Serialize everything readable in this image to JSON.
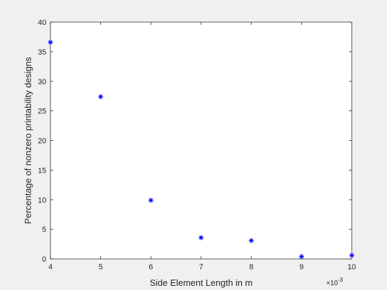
{
  "chart_data": {
    "type": "scatter",
    "title": "",
    "xlabel": "Side Element Length in m",
    "ylabel": "Percentage of nonzero printability designs",
    "x_multiplier_label": {
      "base": "×10",
      "exponent": "-3"
    },
    "xlim": [
      4,
      10
    ],
    "ylim": [
      0,
      40
    ],
    "x_ticks": [
      4,
      5,
      6,
      7,
      8,
      9,
      10
    ],
    "y_ticks": [
      0,
      5,
      10,
      15,
      20,
      25,
      30,
      35,
      40
    ],
    "grid": false,
    "marker": "asterisk",
    "colors": {
      "marker": "#0000ff",
      "axes": "#262626",
      "plot_bg": "#ffffff",
      "figure_bg": "#f0f0f0"
    },
    "series": [
      {
        "x": [
          4,
          5,
          6,
          7,
          8,
          9,
          10
        ],
        "y": [
          36.6,
          27.4,
          9.9,
          3.6,
          3.1,
          0.4,
          0.6
        ]
      }
    ]
  }
}
